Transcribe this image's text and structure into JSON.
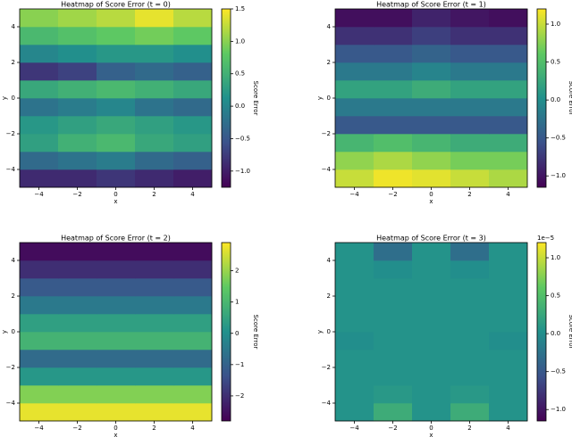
{
  "chart_data": [
    {
      "type": "heatmap",
      "title": "Heatmap of Score Error (t = 0)",
      "xlabel": "x",
      "ylabel": "y",
      "colorbar_label": "Score Error",
      "colormap": "viridis",
      "x_bins": [
        -5,
        -3,
        -1,
        1,
        3,
        5
      ],
      "y_bins": [
        -5,
        -4,
        -3,
        -2,
        -1,
        0,
        1,
        2,
        3,
        4,
        5
      ],
      "z": [
        [
          -0.9,
          -0.9,
          -0.8,
          -0.9,
          -1.0
        ],
        [
          -0.3,
          -0.2,
          -0.1,
          -0.3,
          -0.4
        ],
        [
          0.3,
          0.5,
          0.6,
          0.4,
          0.3
        ],
        [
          0.2,
          0.3,
          0.4,
          0.3,
          0.2
        ],
        [
          -0.2,
          -0.1,
          0.0,
          -0.2,
          -0.3
        ],
        [
          0.4,
          0.5,
          0.6,
          0.5,
          0.4
        ],
        [
          -0.8,
          -0.7,
          -0.4,
          -0.3,
          -0.4
        ],
        [
          0.0,
          0.1,
          0.2,
          0.2,
          0.1
        ],
        [
          0.6,
          0.7,
          0.8,
          0.9,
          0.8
        ],
        [
          1.0,
          1.1,
          1.2,
          1.4,
          1.2
        ]
      ],
      "xlim": [
        -5,
        5
      ],
      "ylim": [
        -5,
        5
      ],
      "xticks": [
        {
          "value": -4,
          "label": "−4"
        },
        {
          "value": -2,
          "label": "−2"
        },
        0,
        2,
        4
      ],
      "yticks": [
        {
          "value": -4,
          "label": "−4"
        },
        {
          "value": -2,
          "label": "−2"
        },
        0,
        2,
        4
      ],
      "clim": [
        -1.25,
        1.5
      ],
      "cticks": [
        {
          "value": -1,
          "label": "−1.0"
        },
        {
          "value": -0.5,
          "label": "−0.5"
        },
        {
          "value": 0,
          "label": "0.0"
        },
        {
          "value": 0.5,
          "label": "0.5"
        },
        {
          "value": 1,
          "label": "1.0"
        },
        {
          "value": 1.5,
          "label": "1.5"
        }
      ]
    },
    {
      "type": "heatmap",
      "title": "Heatmap of Score Error (t = 1)",
      "xlabel": "x",
      "ylabel": "y",
      "colorbar_label": "Score Error",
      "colormap": "viridis",
      "x_bins": [
        -5,
        -3,
        -1,
        1,
        3,
        5
      ],
      "y_bins": [
        -5,
        -4,
        -3,
        -2,
        -1,
        0,
        1,
        2,
        3,
        4,
        5
      ],
      "z": [
        [
          1.0,
          1.15,
          1.1,
          1.0,
          0.9
        ],
        [
          0.8,
          0.9,
          0.8,
          0.7,
          0.7
        ],
        [
          0.4,
          0.5,
          0.4,
          0.3,
          0.3
        ],
        [
          -0.5,
          -0.5,
          -0.5,
          -0.5,
          -0.5
        ],
        [
          -0.2,
          -0.2,
          -0.2,
          -0.2,
          -0.2
        ],
        [
          0.2,
          0.2,
          0.3,
          0.2,
          0.2
        ],
        [
          -0.2,
          -0.2,
          -0.1,
          -0.2,
          -0.2
        ],
        [
          -0.5,
          -0.5,
          -0.4,
          -0.5,
          -0.5
        ],
        [
          -0.8,
          -0.8,
          -0.7,
          -0.8,
          -0.8
        ],
        [
          -1.05,
          -1.05,
          -0.9,
          -1.0,
          -1.05
        ]
      ],
      "xlim": [
        -5,
        5
      ],
      "ylim": [
        -5,
        5
      ],
      "xticks": [
        {
          "value": -4,
          "label": "−4"
        },
        {
          "value": -2,
          "label": "−2"
        },
        0,
        2,
        4
      ],
      "yticks": [
        {
          "value": -4,
          "label": "−4"
        },
        {
          "value": -2,
          "label": "−2"
        },
        0,
        2,
        4
      ],
      "clim": [
        -1.15,
        1.2
      ],
      "cticks": [
        {
          "value": -1,
          "label": "−1.0"
        },
        {
          "value": -0.5,
          "label": "−0.5"
        },
        {
          "value": 0,
          "label": "0.0"
        },
        {
          "value": 0.5,
          "label": "0.5"
        },
        {
          "value": 1,
          "label": "1.0"
        }
      ]
    },
    {
      "type": "heatmap",
      "title": "Heatmap of Score Error (t = 2)",
      "xlabel": "x",
      "ylabel": "y",
      "colorbar_label": "Score Error",
      "colormap": "viridis",
      "x_bins": [
        -5,
        -3,
        -1,
        1,
        3,
        5
      ],
      "y_bins": [
        -5,
        -4,
        -3,
        -2,
        -1,
        0,
        1,
        2,
        3,
        4,
        5
      ],
      "z": [
        [
          2.7,
          2.7,
          2.7,
          2.7,
          2.7
        ],
        [
          1.8,
          1.8,
          1.8,
          1.8,
          1.8
        ],
        [
          0.2,
          0.2,
          0.2,
          0.2,
          0.2
        ],
        [
          -0.8,
          -0.8,
          -0.8,
          -0.8,
          -0.8
        ],
        [
          0.9,
          0.9,
          0.9,
          0.9,
          0.9
        ],
        [
          0.4,
          0.4,
          0.4,
          0.4,
          0.4
        ],
        [
          -0.5,
          -0.5,
          -0.5,
          -0.5,
          -0.5
        ],
        [
          -1.2,
          -1.2,
          -1.2,
          -1.2,
          -1.2
        ],
        [
          -2.0,
          -2.0,
          -2.0,
          -2.0,
          -2.0
        ],
        [
          -2.6,
          -2.6,
          -2.6,
          -2.6,
          -2.6
        ]
      ],
      "xlim": [
        -5,
        5
      ],
      "ylim": [
        -5,
        5
      ],
      "xticks": [
        {
          "value": -4,
          "label": "−4"
        },
        {
          "value": -2,
          "label": "−2"
        },
        0,
        2,
        4
      ],
      "yticks": [
        {
          "value": -4,
          "label": "−4"
        },
        {
          "value": -2,
          "label": "−2"
        },
        0,
        2,
        4
      ],
      "clim": [
        -2.8,
        2.9
      ],
      "cticks": [
        {
          "value": -2,
          "label": "−2"
        },
        {
          "value": -1,
          "label": "−1"
        },
        0,
        1,
        2
      ]
    },
    {
      "type": "heatmap",
      "title": "Heatmap of Score Error (t = 3)",
      "xlabel": "x",
      "ylabel": "y",
      "colorbar_label": "Score Error",
      "colormap": "viridis",
      "offset_text": "1e−5",
      "x_bins": [
        -5,
        -3,
        -1,
        1,
        3,
        5
      ],
      "y_bins": [
        -5,
        -4,
        -3,
        -2,
        -1,
        0,
        1,
        2,
        3,
        4,
        5
      ],
      "z": [
        [
          0.05,
          0.3,
          0.05,
          0.3,
          0.05
        ],
        [
          0.05,
          0.1,
          0.05,
          0.1,
          0.05
        ],
        [
          0.05,
          0.05,
          0.05,
          0.05,
          0.05
        ],
        [
          0.05,
          0.05,
          0.05,
          0.05,
          0.05
        ],
        [
          0.0,
          0.05,
          0.05,
          0.05,
          0.0
        ],
        [
          0.05,
          0.05,
          0.05,
          0.05,
          0.05
        ],
        [
          0.05,
          0.05,
          0.05,
          0.05,
          0.05
        ],
        [
          0.05,
          0.05,
          0.05,
          0.05,
          0.05
        ],
        [
          0.05,
          0.0,
          0.05,
          0.0,
          0.05
        ],
        [
          0.05,
          -0.3,
          0.05,
          -0.3,
          0.05
        ]
      ],
      "xlim": [
        -5,
        5
      ],
      "ylim": [
        -5,
        5
      ],
      "xticks": [
        {
          "value": -4,
          "label": "−4"
        },
        {
          "value": -2,
          "label": "−2"
        },
        0,
        2,
        4
      ],
      "yticks": [
        {
          "value": -4,
          "label": "−4"
        },
        {
          "value": -2,
          "label": "−2"
        },
        0,
        2,
        4
      ],
      "clim": [
        -1.15,
        1.2
      ],
      "cticks": [
        {
          "value": -1,
          "label": "−1.0"
        },
        {
          "value": -0.5,
          "label": "−0.5"
        },
        {
          "value": 0,
          "label": "0.0"
        },
        {
          "value": 0.5,
          "label": "0.5"
        },
        {
          "value": 1,
          "label": "1.0"
        }
      ]
    }
  ]
}
